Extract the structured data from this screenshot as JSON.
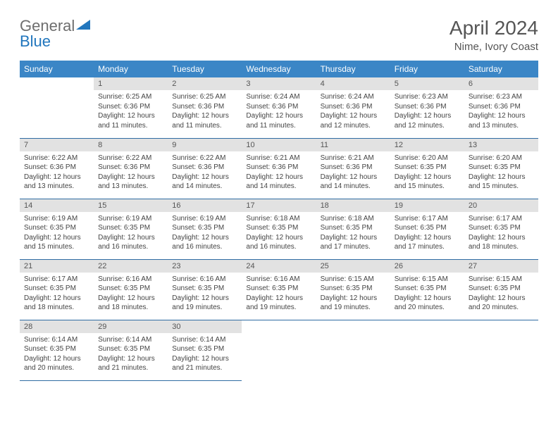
{
  "brand": {
    "general": "General",
    "blue": "Blue"
  },
  "title": "April 2024",
  "location": "Nime, Ivory Coast",
  "colors": {
    "header_bg": "#3b86c6",
    "header_text": "#ffffff",
    "daynum_bg": "#e2e2e2",
    "row_border": "#2f6ca3",
    "logo_blue": "#2176bd",
    "logo_gray": "#6e6e6e",
    "page_bg": "#ffffff"
  },
  "weekdays": [
    "Sunday",
    "Monday",
    "Tuesday",
    "Wednesday",
    "Thursday",
    "Friday",
    "Saturday"
  ],
  "weeks": [
    [
      {
        "n": "",
        "sr": "",
        "ss": "",
        "dl": ""
      },
      {
        "n": "1",
        "sr": "Sunrise: 6:25 AM",
        "ss": "Sunset: 6:36 PM",
        "dl": "Daylight: 12 hours and 11 minutes."
      },
      {
        "n": "2",
        "sr": "Sunrise: 6:25 AM",
        "ss": "Sunset: 6:36 PM",
        "dl": "Daylight: 12 hours and 11 minutes."
      },
      {
        "n": "3",
        "sr": "Sunrise: 6:24 AM",
        "ss": "Sunset: 6:36 PM",
        "dl": "Daylight: 12 hours and 11 minutes."
      },
      {
        "n": "4",
        "sr": "Sunrise: 6:24 AM",
        "ss": "Sunset: 6:36 PM",
        "dl": "Daylight: 12 hours and 12 minutes."
      },
      {
        "n": "5",
        "sr": "Sunrise: 6:23 AM",
        "ss": "Sunset: 6:36 PM",
        "dl": "Daylight: 12 hours and 12 minutes."
      },
      {
        "n": "6",
        "sr": "Sunrise: 6:23 AM",
        "ss": "Sunset: 6:36 PM",
        "dl": "Daylight: 12 hours and 13 minutes."
      }
    ],
    [
      {
        "n": "7",
        "sr": "Sunrise: 6:22 AM",
        "ss": "Sunset: 6:36 PM",
        "dl": "Daylight: 12 hours and 13 minutes."
      },
      {
        "n": "8",
        "sr": "Sunrise: 6:22 AM",
        "ss": "Sunset: 6:36 PM",
        "dl": "Daylight: 12 hours and 13 minutes."
      },
      {
        "n": "9",
        "sr": "Sunrise: 6:22 AM",
        "ss": "Sunset: 6:36 PM",
        "dl": "Daylight: 12 hours and 14 minutes."
      },
      {
        "n": "10",
        "sr": "Sunrise: 6:21 AM",
        "ss": "Sunset: 6:36 PM",
        "dl": "Daylight: 12 hours and 14 minutes."
      },
      {
        "n": "11",
        "sr": "Sunrise: 6:21 AM",
        "ss": "Sunset: 6:36 PM",
        "dl": "Daylight: 12 hours and 14 minutes."
      },
      {
        "n": "12",
        "sr": "Sunrise: 6:20 AM",
        "ss": "Sunset: 6:35 PM",
        "dl": "Daylight: 12 hours and 15 minutes."
      },
      {
        "n": "13",
        "sr": "Sunrise: 6:20 AM",
        "ss": "Sunset: 6:35 PM",
        "dl": "Daylight: 12 hours and 15 minutes."
      }
    ],
    [
      {
        "n": "14",
        "sr": "Sunrise: 6:19 AM",
        "ss": "Sunset: 6:35 PM",
        "dl": "Daylight: 12 hours and 15 minutes."
      },
      {
        "n": "15",
        "sr": "Sunrise: 6:19 AM",
        "ss": "Sunset: 6:35 PM",
        "dl": "Daylight: 12 hours and 16 minutes."
      },
      {
        "n": "16",
        "sr": "Sunrise: 6:19 AM",
        "ss": "Sunset: 6:35 PM",
        "dl": "Daylight: 12 hours and 16 minutes."
      },
      {
        "n": "17",
        "sr": "Sunrise: 6:18 AM",
        "ss": "Sunset: 6:35 PM",
        "dl": "Daylight: 12 hours and 16 minutes."
      },
      {
        "n": "18",
        "sr": "Sunrise: 6:18 AM",
        "ss": "Sunset: 6:35 PM",
        "dl": "Daylight: 12 hours and 17 minutes."
      },
      {
        "n": "19",
        "sr": "Sunrise: 6:17 AM",
        "ss": "Sunset: 6:35 PM",
        "dl": "Daylight: 12 hours and 17 minutes."
      },
      {
        "n": "20",
        "sr": "Sunrise: 6:17 AM",
        "ss": "Sunset: 6:35 PM",
        "dl": "Daylight: 12 hours and 18 minutes."
      }
    ],
    [
      {
        "n": "21",
        "sr": "Sunrise: 6:17 AM",
        "ss": "Sunset: 6:35 PM",
        "dl": "Daylight: 12 hours and 18 minutes."
      },
      {
        "n": "22",
        "sr": "Sunrise: 6:16 AM",
        "ss": "Sunset: 6:35 PM",
        "dl": "Daylight: 12 hours and 18 minutes."
      },
      {
        "n": "23",
        "sr": "Sunrise: 6:16 AM",
        "ss": "Sunset: 6:35 PM",
        "dl": "Daylight: 12 hours and 19 minutes."
      },
      {
        "n": "24",
        "sr": "Sunrise: 6:16 AM",
        "ss": "Sunset: 6:35 PM",
        "dl": "Daylight: 12 hours and 19 minutes."
      },
      {
        "n": "25",
        "sr": "Sunrise: 6:15 AM",
        "ss": "Sunset: 6:35 PM",
        "dl": "Daylight: 12 hours and 19 minutes."
      },
      {
        "n": "26",
        "sr": "Sunrise: 6:15 AM",
        "ss": "Sunset: 6:35 PM",
        "dl": "Daylight: 12 hours and 20 minutes."
      },
      {
        "n": "27",
        "sr": "Sunrise: 6:15 AM",
        "ss": "Sunset: 6:35 PM",
        "dl": "Daylight: 12 hours and 20 minutes."
      }
    ],
    [
      {
        "n": "28",
        "sr": "Sunrise: 6:14 AM",
        "ss": "Sunset: 6:35 PM",
        "dl": "Daylight: 12 hours and 20 minutes."
      },
      {
        "n": "29",
        "sr": "Sunrise: 6:14 AM",
        "ss": "Sunset: 6:35 PM",
        "dl": "Daylight: 12 hours and 21 minutes."
      },
      {
        "n": "30",
        "sr": "Sunrise: 6:14 AM",
        "ss": "Sunset: 6:35 PM",
        "dl": "Daylight: 12 hours and 21 minutes."
      },
      {
        "n": "",
        "sr": "",
        "ss": "",
        "dl": ""
      },
      {
        "n": "",
        "sr": "",
        "ss": "",
        "dl": ""
      },
      {
        "n": "",
        "sr": "",
        "ss": "",
        "dl": ""
      },
      {
        "n": "",
        "sr": "",
        "ss": "",
        "dl": ""
      }
    ]
  ]
}
